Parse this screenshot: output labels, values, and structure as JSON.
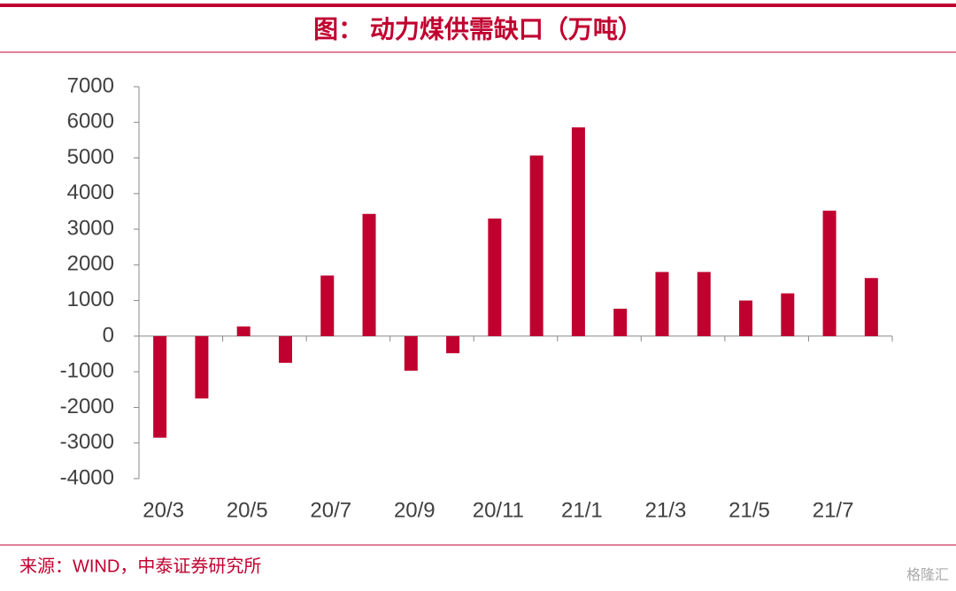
{
  "chart_data": {
    "type": "bar",
    "title": "图：  动力煤供需缺口（万吨）",
    "source": "来源：WIND，中泰证券研究所",
    "watermark": "格隆汇",
    "categories": [
      "20/3",
      null,
      "20/5",
      null,
      "20/7",
      null,
      "20/9",
      null,
      "20/11",
      null,
      "21/1",
      null,
      "21/3",
      null,
      "21/5",
      null,
      "21/7",
      null
    ],
    "values": [
      -2850,
      -1750,
      270,
      -750,
      1700,
      3430,
      -970,
      -480,
      3300,
      5070,
      5860,
      770,
      1800,
      1800,
      1000,
      1200,
      3520,
      1630
    ],
    "color": "#c0002f",
    "ylim": [
      -4000,
      7000
    ],
    "yticks": [
      -4000,
      -3000,
      -2000,
      -1000,
      0,
      1000,
      2000,
      3000,
      4000,
      5000,
      6000,
      7000
    ],
    "grid": false
  }
}
